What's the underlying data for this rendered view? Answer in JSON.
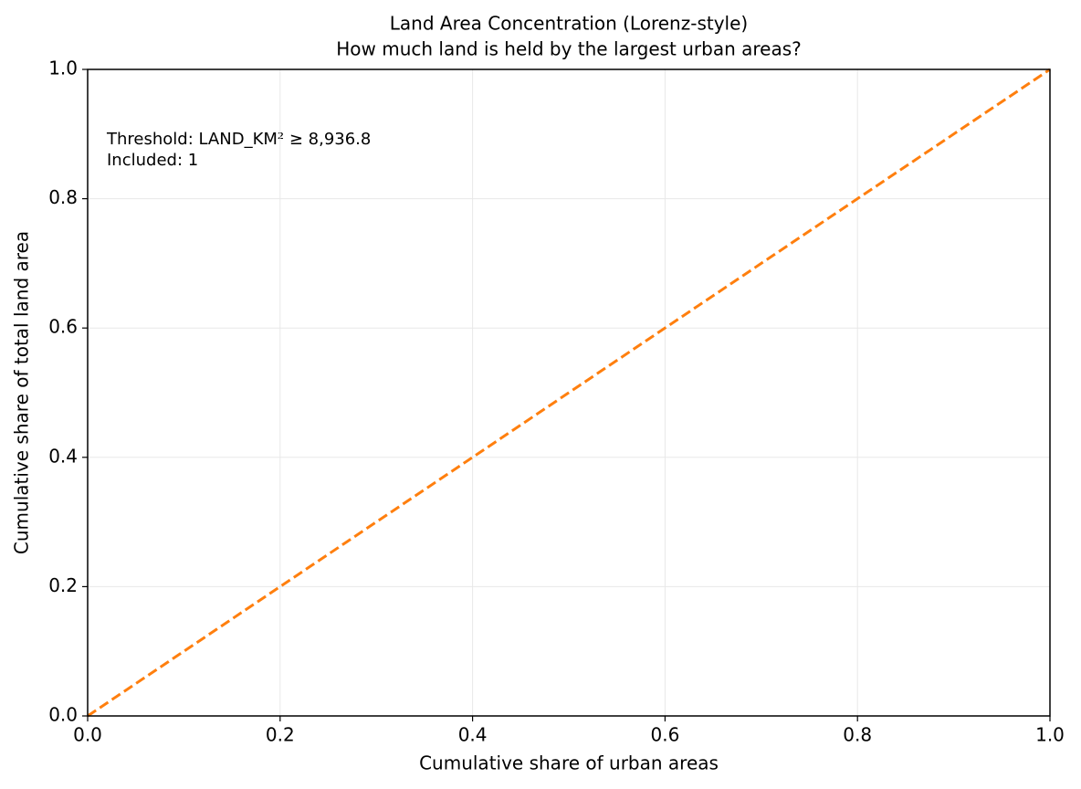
{
  "chart_data": {
    "type": "line",
    "title": "Land Area Concentration (Lorenz-style)",
    "subtitle": "How much land is held by the largest urban areas?",
    "x_label": "Cumulative share of urban areas",
    "y_label": "Cumulative share of total land area",
    "annotations": [
      "Threshold: LAND_KM² ≥ 8,936.8",
      "Included: 1"
    ],
    "x": [
      0,
      1
    ],
    "series": [
      {
        "color": "#ff7f0e",
        "linestyle": "dashed",
        "values": [
          0,
          1
        ]
      }
    ],
    "xlim": [
      0,
      1
    ],
    "ylim": [
      0,
      1
    ],
    "xticks": [
      {
        "value": 0,
        "label": "0.0"
      },
      0.2,
      0.4,
      0.6,
      0.8,
      {
        "value": 1,
        "label": "1.0"
      }
    ],
    "yticks": [
      {
        "value": 0,
        "label": "0.0"
      },
      0.2,
      0.4,
      0.6,
      0.8,
      {
        "value": 1,
        "label": "1.0"
      }
    ],
    "grid": true
  }
}
